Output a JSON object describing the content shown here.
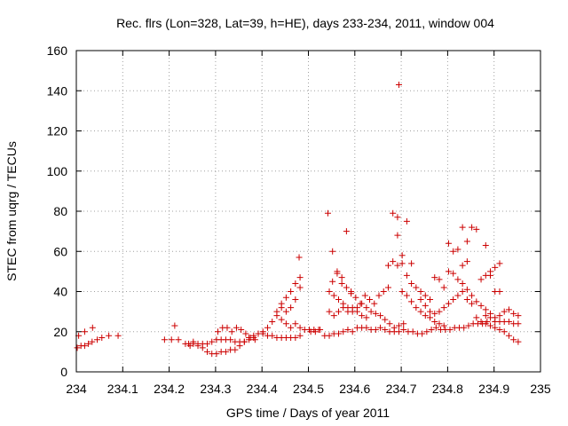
{
  "chart_data": {
    "type": "scatter",
    "title": "Rec. flrs (Lon=328, Lat=39, h=HE), days 233-234, 2011, window 004",
    "xlabel": "GPS time / Days of year 2011",
    "ylabel": "STEC from uqrg / TECUs",
    "xlim": [
      234,
      235
    ],
    "ylim": [
      0,
      160
    ],
    "xticks": [
      "234",
      "234.1",
      "234.2",
      "234.3",
      "234.4",
      "234.5",
      "234.6",
      "234.7",
      "234.8",
      "234.9",
      "235"
    ],
    "yticks": [
      "0",
      "20",
      "40",
      "60",
      "80",
      "100",
      "120",
      "140",
      "160"
    ],
    "grid": true,
    "marker": "plus",
    "color": "#cc0000",
    "series": [
      {
        "points": [
          [
            234.002,
            12
          ],
          [
            234.01,
            13
          ],
          [
            234.018,
            13
          ],
          [
            234.026,
            14
          ],
          [
            234.034,
            15
          ],
          [
            234.045,
            16
          ],
          [
            234.055,
            17
          ],
          [
            234.07,
            18
          ],
          [
            234.09,
            18
          ],
          [
            234.005,
            18
          ],
          [
            234.018,
            20
          ],
          [
            234.035,
            22
          ],
          [
            234.19,
            16
          ],
          [
            234.205,
            16
          ],
          [
            234.212,
            23
          ],
          [
            234.22,
            16
          ],
          [
            234.235,
            14
          ],
          [
            234.245,
            13
          ],
          [
            234.252,
            15
          ],
          [
            234.262,
            13
          ],
          [
            234.272,
            12
          ],
          [
            234.282,
            10
          ],
          [
            234.292,
            9
          ],
          [
            234.302,
            9
          ],
          [
            234.312,
            10
          ],
          [
            234.322,
            10
          ],
          [
            234.332,
            11
          ],
          [
            234.342,
            11
          ],
          [
            234.352,
            13
          ],
          [
            234.362,
            15
          ],
          [
            234.372,
            17
          ],
          [
            234.382,
            18
          ],
          [
            234.392,
            19
          ],
          [
            234.402,
            19
          ],
          [
            234.412,
            18
          ],
          [
            234.422,
            18
          ],
          [
            234.432,
            17
          ],
          [
            234.442,
            17
          ],
          [
            234.452,
            17
          ],
          [
            234.462,
            17
          ],
          [
            234.472,
            17
          ],
          [
            234.482,
            18
          ],
          [
            234.242,
            14
          ],
          [
            234.252,
            14
          ],
          [
            234.262,
            14
          ],
          [
            234.272,
            14
          ],
          [
            234.282,
            14
          ],
          [
            234.292,
            15
          ],
          [
            234.302,
            16
          ],
          [
            234.312,
            16
          ],
          [
            234.322,
            16
          ],
          [
            234.332,
            16
          ],
          [
            234.342,
            15
          ],
          [
            234.352,
            15
          ],
          [
            234.362,
            15
          ],
          [
            234.372,
            16
          ],
          [
            234.382,
            17
          ],
          [
            234.392,
            19
          ],
          [
            234.402,
            20
          ],
          [
            234.412,
            22
          ],
          [
            234.422,
            25
          ],
          [
            234.432,
            28
          ],
          [
            234.442,
            32
          ],
          [
            234.452,
            37
          ],
          [
            234.462,
            40
          ],
          [
            234.472,
            44
          ],
          [
            234.482,
            47
          ],
          [
            234.305,
            20
          ],
          [
            234.315,
            22
          ],
          [
            234.325,
            22
          ],
          [
            234.335,
            20
          ],
          [
            234.345,
            22
          ],
          [
            234.355,
            21
          ],
          [
            234.365,
            19
          ],
          [
            234.375,
            17
          ],
          [
            234.385,
            16
          ],
          [
            234.432,
            30
          ],
          [
            234.442,
            26
          ],
          [
            234.452,
            24
          ],
          [
            234.462,
            22
          ],
          [
            234.472,
            24
          ],
          [
            234.482,
            22
          ],
          [
            234.492,
            21
          ],
          [
            234.502,
            21
          ],
          [
            234.512,
            21
          ],
          [
            234.522,
            21
          ],
          [
            234.442,
            34
          ],
          [
            234.452,
            30
          ],
          [
            234.462,
            32
          ],
          [
            234.472,
            36
          ],
          [
            234.48,
            57
          ],
          [
            234.482,
            42
          ],
          [
            234.505,
            20
          ],
          [
            234.515,
            20
          ],
          [
            234.525,
            21
          ],
          [
            234.535,
            18
          ],
          [
            234.545,
            18
          ],
          [
            234.555,
            19
          ],
          [
            234.565,
            19
          ],
          [
            234.575,
            20
          ],
          [
            234.585,
            21
          ],
          [
            234.595,
            20
          ],
          [
            234.605,
            22
          ],
          [
            234.615,
            22
          ],
          [
            234.625,
            22
          ],
          [
            234.635,
            21
          ],
          [
            234.645,
            21
          ],
          [
            234.655,
            22
          ],
          [
            234.665,
            21
          ],
          [
            234.675,
            20
          ],
          [
            234.685,
            20
          ],
          [
            234.695,
            20
          ],
          [
            234.705,
            21
          ],
          [
            234.715,
            20
          ],
          [
            234.725,
            20
          ],
          [
            234.735,
            19
          ],
          [
            234.745,
            19
          ],
          [
            234.755,
            20
          ],
          [
            234.765,
            21
          ],
          [
            234.775,
            22
          ],
          [
            234.785,
            21
          ],
          [
            234.795,
            21
          ],
          [
            234.805,
            21
          ],
          [
            234.815,
            22
          ],
          [
            234.825,
            22
          ],
          [
            234.835,
            22
          ],
          [
            234.845,
            23
          ],
          [
            234.855,
            24
          ],
          [
            234.865,
            24
          ],
          [
            234.875,
            24
          ],
          [
            234.885,
            25
          ],
          [
            234.542,
            79
          ],
          [
            234.552,
            60
          ],
          [
            234.562,
            50
          ],
          [
            234.572,
            44
          ],
          [
            234.582,
            70
          ],
          [
            234.592,
            40
          ],
          [
            234.552,
            45
          ],
          [
            234.545,
            40
          ],
          [
            234.555,
            38
          ],
          [
            234.565,
            36
          ],
          [
            234.575,
            34
          ],
          [
            234.585,
            32
          ],
          [
            234.595,
            30
          ],
          [
            234.605,
            32
          ],
          [
            234.615,
            34
          ],
          [
            234.625,
            32
          ],
          [
            234.635,
            30
          ],
          [
            234.645,
            29
          ],
          [
            234.655,
            28
          ],
          [
            234.665,
            26
          ],
          [
            234.675,
            24
          ],
          [
            234.685,
            22
          ],
          [
            234.695,
            23
          ],
          [
            234.705,
            24
          ],
          [
            234.545,
            30
          ],
          [
            234.555,
            28
          ],
          [
            234.565,
            30
          ],
          [
            234.575,
            32
          ],
          [
            234.585,
            30
          ],
          [
            234.595,
            32
          ],
          [
            234.605,
            30
          ],
          [
            234.615,
            28
          ],
          [
            234.625,
            27
          ],
          [
            234.562,
            49
          ],
          [
            234.572,
            47
          ],
          [
            234.582,
            42
          ],
          [
            234.592,
            39
          ],
          [
            234.602,
            37
          ],
          [
            234.612,
            34
          ],
          [
            234.622,
            38
          ],
          [
            234.632,
            36
          ],
          [
            234.642,
            34
          ],
          [
            234.652,
            38
          ],
          [
            234.662,
            40
          ],
          [
            234.672,
            42
          ],
          [
            234.682,
            79
          ],
          [
            234.692,
            77
          ],
          [
            234.692,
            68
          ],
          [
            234.695,
            143
          ],
          [
            234.712,
            75
          ],
          [
            234.672,
            53
          ],
          [
            234.682,
            55
          ],
          [
            234.692,
            53
          ],
          [
            234.702,
            54
          ],
          [
            234.702,
            58
          ],
          [
            234.712,
            48
          ],
          [
            234.722,
            44
          ],
          [
            234.732,
            42
          ],
          [
            234.742,
            40
          ],
          [
            234.752,
            38
          ],
          [
            234.762,
            36
          ],
          [
            234.702,
            40
          ],
          [
            234.712,
            38
          ],
          [
            234.722,
            35
          ],
          [
            234.732,
            32
          ],
          [
            234.742,
            30
          ],
          [
            234.752,
            28
          ],
          [
            234.762,
            27
          ],
          [
            234.772,
            25
          ],
          [
            234.782,
            24
          ],
          [
            234.792,
            23
          ],
          [
            234.722,
            54
          ],
          [
            234.742,
            36
          ],
          [
            234.752,
            33
          ],
          [
            234.762,
            30
          ],
          [
            234.772,
            29
          ],
          [
            234.782,
            30
          ],
          [
            234.792,
            32
          ],
          [
            234.802,
            34
          ],
          [
            234.812,
            36
          ],
          [
            234.822,
            38
          ],
          [
            234.832,
            40
          ],
          [
            234.842,
            36
          ],
          [
            234.852,
            34
          ],
          [
            234.772,
            47
          ],
          [
            234.782,
            46
          ],
          [
            234.792,
            42
          ],
          [
            234.802,
            64
          ],
          [
            234.812,
            60
          ],
          [
            234.822,
            61
          ],
          [
            234.832,
            72
          ],
          [
            234.842,
            65
          ],
          [
            234.852,
            72
          ],
          [
            234.862,
            71
          ],
          [
            234.882,
            63
          ],
          [
            234.802,
            50
          ],
          [
            234.812,
            49
          ],
          [
            234.822,
            46
          ],
          [
            234.832,
            44
          ],
          [
            234.842,
            41
          ],
          [
            234.852,
            38
          ],
          [
            234.862,
            35
          ],
          [
            234.872,
            33
          ],
          [
            234.882,
            31
          ],
          [
            234.892,
            29
          ],
          [
            234.832,
            53
          ],
          [
            234.842,
            55
          ],
          [
            234.872,
            46
          ],
          [
            234.882,
            48
          ],
          [
            234.892,
            50
          ],
          [
            234.902,
            52
          ],
          [
            234.912,
            54
          ],
          [
            234.892,
            48
          ],
          [
            234.902,
            40
          ],
          [
            234.912,
            40
          ],
          [
            234.862,
            27
          ],
          [
            234.872,
            25
          ],
          [
            234.882,
            24
          ],
          [
            234.892,
            23
          ],
          [
            234.902,
            22
          ],
          [
            234.912,
            21
          ],
          [
            234.922,
            20
          ],
          [
            234.932,
            18
          ],
          [
            234.942,
            16
          ],
          [
            234.952,
            15
          ],
          [
            234.882,
            28
          ],
          [
            234.892,
            27
          ],
          [
            234.902,
            27
          ],
          [
            234.912,
            28
          ],
          [
            234.922,
            30
          ],
          [
            234.932,
            31
          ],
          [
            234.942,
            29
          ],
          [
            234.952,
            28
          ],
          [
            234.902,
            25
          ],
          [
            234.912,
            25
          ],
          [
            234.922,
            25
          ],
          [
            234.932,
            25
          ],
          [
            234.942,
            24
          ],
          [
            234.952,
            24
          ]
        ]
      }
    ]
  }
}
